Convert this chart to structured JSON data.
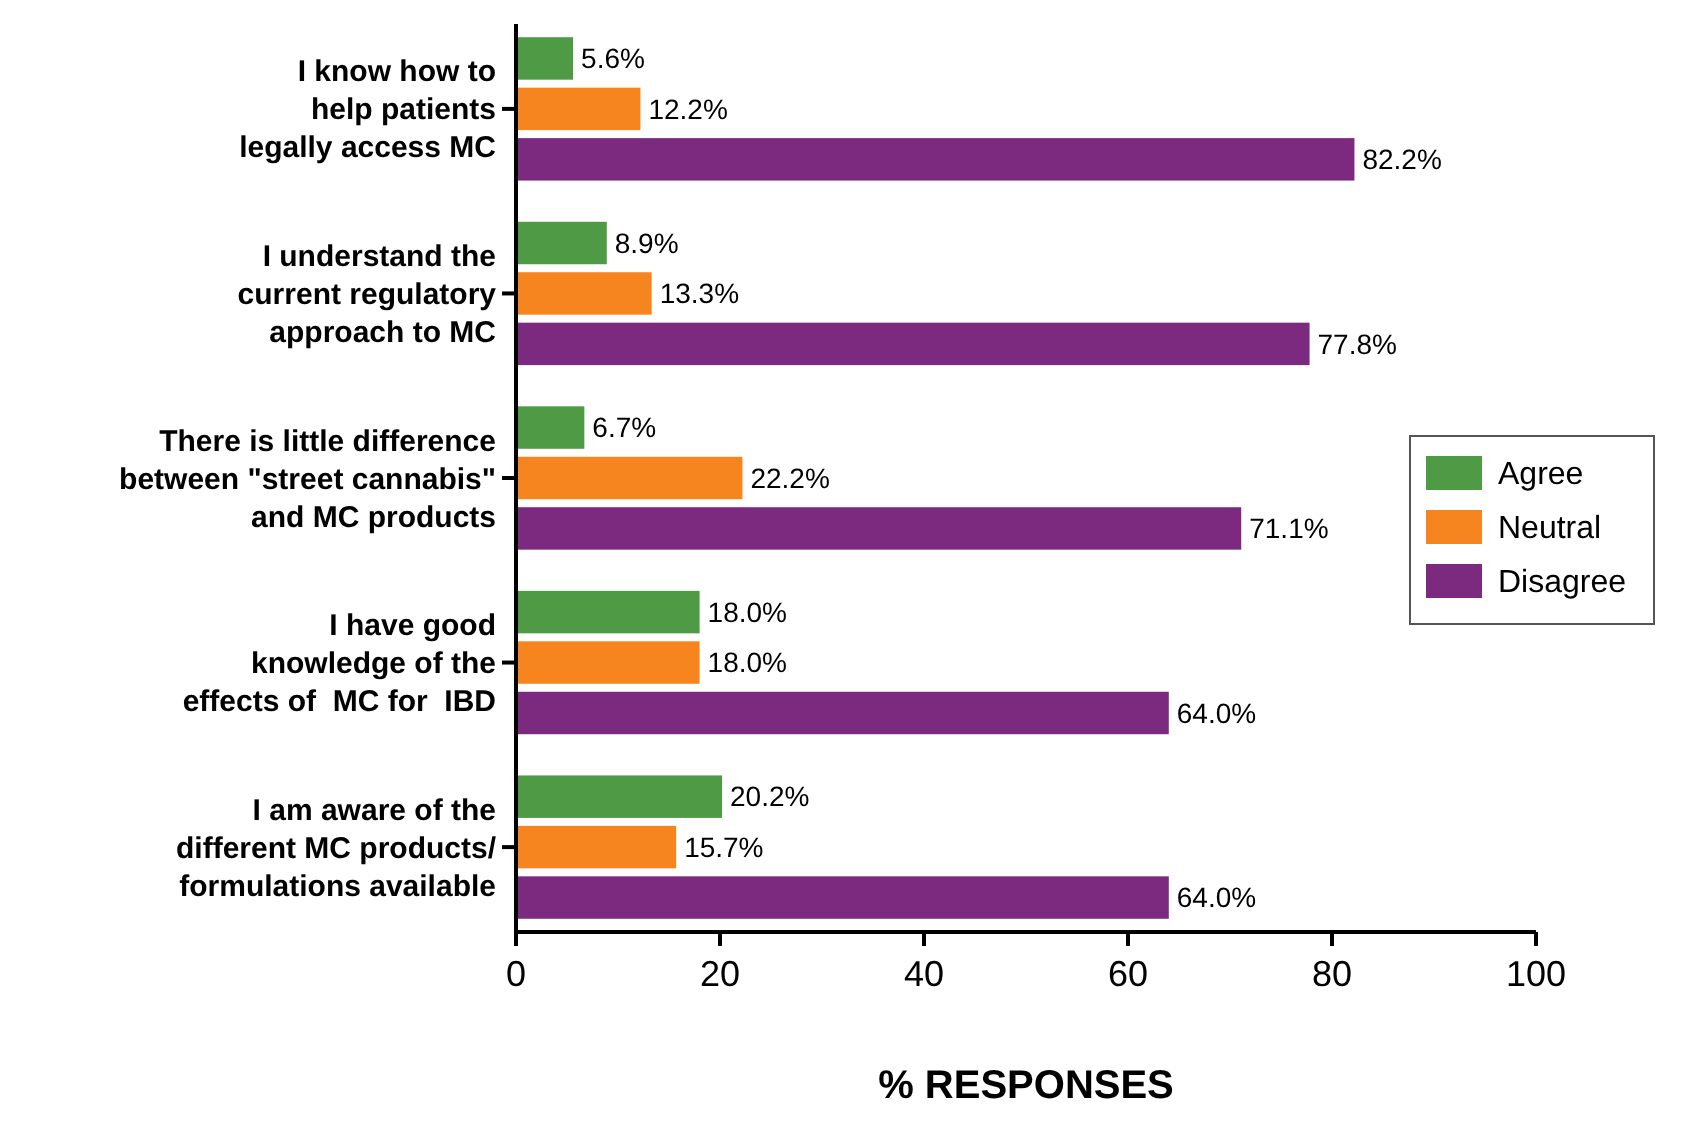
{
  "chart_data": {
    "type": "bar",
    "orientation": "horizontal",
    "xlabel": "% RESPONSES",
    "categories": [
      "I know how to\nhelp patients\nlegally access MC",
      "I understand the\ncurrent regulatory\napproach to MC",
      "There is little difference\nbetween \"street cannabis\"\nand MC products",
      "I have good\nknowledge of the\neffects of  MC for  IBD",
      "I am aware of the\ndifferent MC products/\nformulations available"
    ],
    "series": [
      {
        "name": "Agree",
        "color": "#4e9a45",
        "values": [
          5.6,
          8.9,
          6.7,
          18.0,
          20.2
        ],
        "value_labels": [
          "5.6%",
          "8.9%",
          "6.7%",
          "18.0%",
          "20.2%"
        ]
      },
      {
        "name": "Neutral",
        "color": "#f7851f",
        "values": [
          12.2,
          13.3,
          22.2,
          18.0,
          15.7
        ],
        "value_labels": [
          "12.2%",
          "13.3%",
          "22.2%",
          "18.0%",
          "15.7%"
        ]
      },
      {
        "name": "Disagree",
        "color": "#7b2a7f",
        "values": [
          82.2,
          77.8,
          71.1,
          64.0,
          64.0
        ],
        "value_labels": [
          "82.2%",
          "77.8%",
          "71.1%",
          "64.0%",
          "64.0%"
        ]
      }
    ],
    "xlim": [
      0,
      100
    ],
    "xticks": [
      0,
      20,
      40,
      60,
      80,
      100
    ],
    "legend": "right",
    "grid": false
  }
}
